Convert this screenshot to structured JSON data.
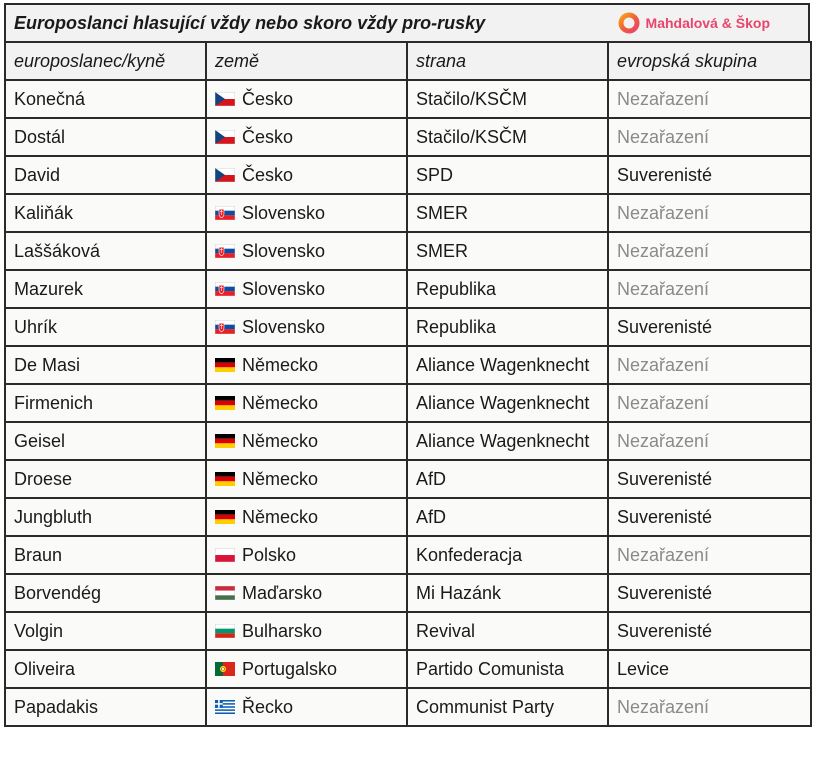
{
  "title": "Europoslanci hlasující vždy nebo skoro vždy pro-rusky",
  "brand": {
    "name": "Mahdalová & Škop",
    "color": "#e8456b",
    "icon": "ring-logo-icon"
  },
  "headers": [
    "europoslanec/kyně",
    "země",
    "strana",
    "evropská skupina"
  ],
  "rows": [
    {
      "name": "Konečná",
      "country": "Česko",
      "flag": "cz",
      "party": "Stačilo/KSČM",
      "group": "Nezařazení"
    },
    {
      "name": "Dostál",
      "country": "Česko",
      "flag": "cz",
      "party": "Stačilo/KSČM",
      "group": "Nezařazení"
    },
    {
      "name": "David",
      "country": "Česko",
      "flag": "cz",
      "party": "SPD",
      "group": "Suverenisté"
    },
    {
      "name": "Kaliňák",
      "country": "Slovensko",
      "flag": "sk",
      "party": "SMER",
      "group": "Nezařazení"
    },
    {
      "name": "Laššáková",
      "country": "Slovensko",
      "flag": "sk",
      "party": "SMER",
      "group": "Nezařazení"
    },
    {
      "name": "Mazurek",
      "country": "Slovensko",
      "flag": "sk",
      "party": "Republika",
      "group": "Nezařazení"
    },
    {
      "name": "Uhrík",
      "country": "Slovensko",
      "flag": "sk",
      "party": "Republika",
      "group": "Suverenisté"
    },
    {
      "name": "De Masi",
      "country": "Německo",
      "flag": "de",
      "party": "Aliance Wagenknecht",
      "group": "Nezařazení"
    },
    {
      "name": "Firmenich",
      "country": "Německo",
      "flag": "de",
      "party": "Aliance Wagenknecht",
      "group": "Nezařazení"
    },
    {
      "name": "Geisel",
      "country": "Německo",
      "flag": "de",
      "party": "Aliance Wagenknecht",
      "group": "Nezařazení"
    },
    {
      "name": "Droese",
      "country": "Německo",
      "flag": "de",
      "party": "AfD",
      "group": "Suverenisté"
    },
    {
      "name": "Jungbluth",
      "country": "Německo",
      "flag": "de",
      "party": "AfD",
      "group": "Suverenisté"
    },
    {
      "name": "Braun",
      "country": "Polsko",
      "flag": "pl",
      "party": "Konfederacja",
      "group": "Nezařazení"
    },
    {
      "name": "Borvendég",
      "country": "Maďarsko",
      "flag": "hu",
      "party": "Mi Hazánk",
      "group": "Suverenisté"
    },
    {
      "name": "Volgin",
      "country": "Bulharsko",
      "flag": "bg",
      "party": "Revival",
      "group": "Suverenisté"
    },
    {
      "name": "Oliveira",
      "country": "Portugalsko",
      "flag": "pt",
      "party": "Partido Comunista",
      "group": "Levice"
    },
    {
      "name": "Papadakis",
      "country": "Řecko",
      "flag": "gr",
      "party": "Communist Party",
      "group": "Nezařazení"
    }
  ]
}
